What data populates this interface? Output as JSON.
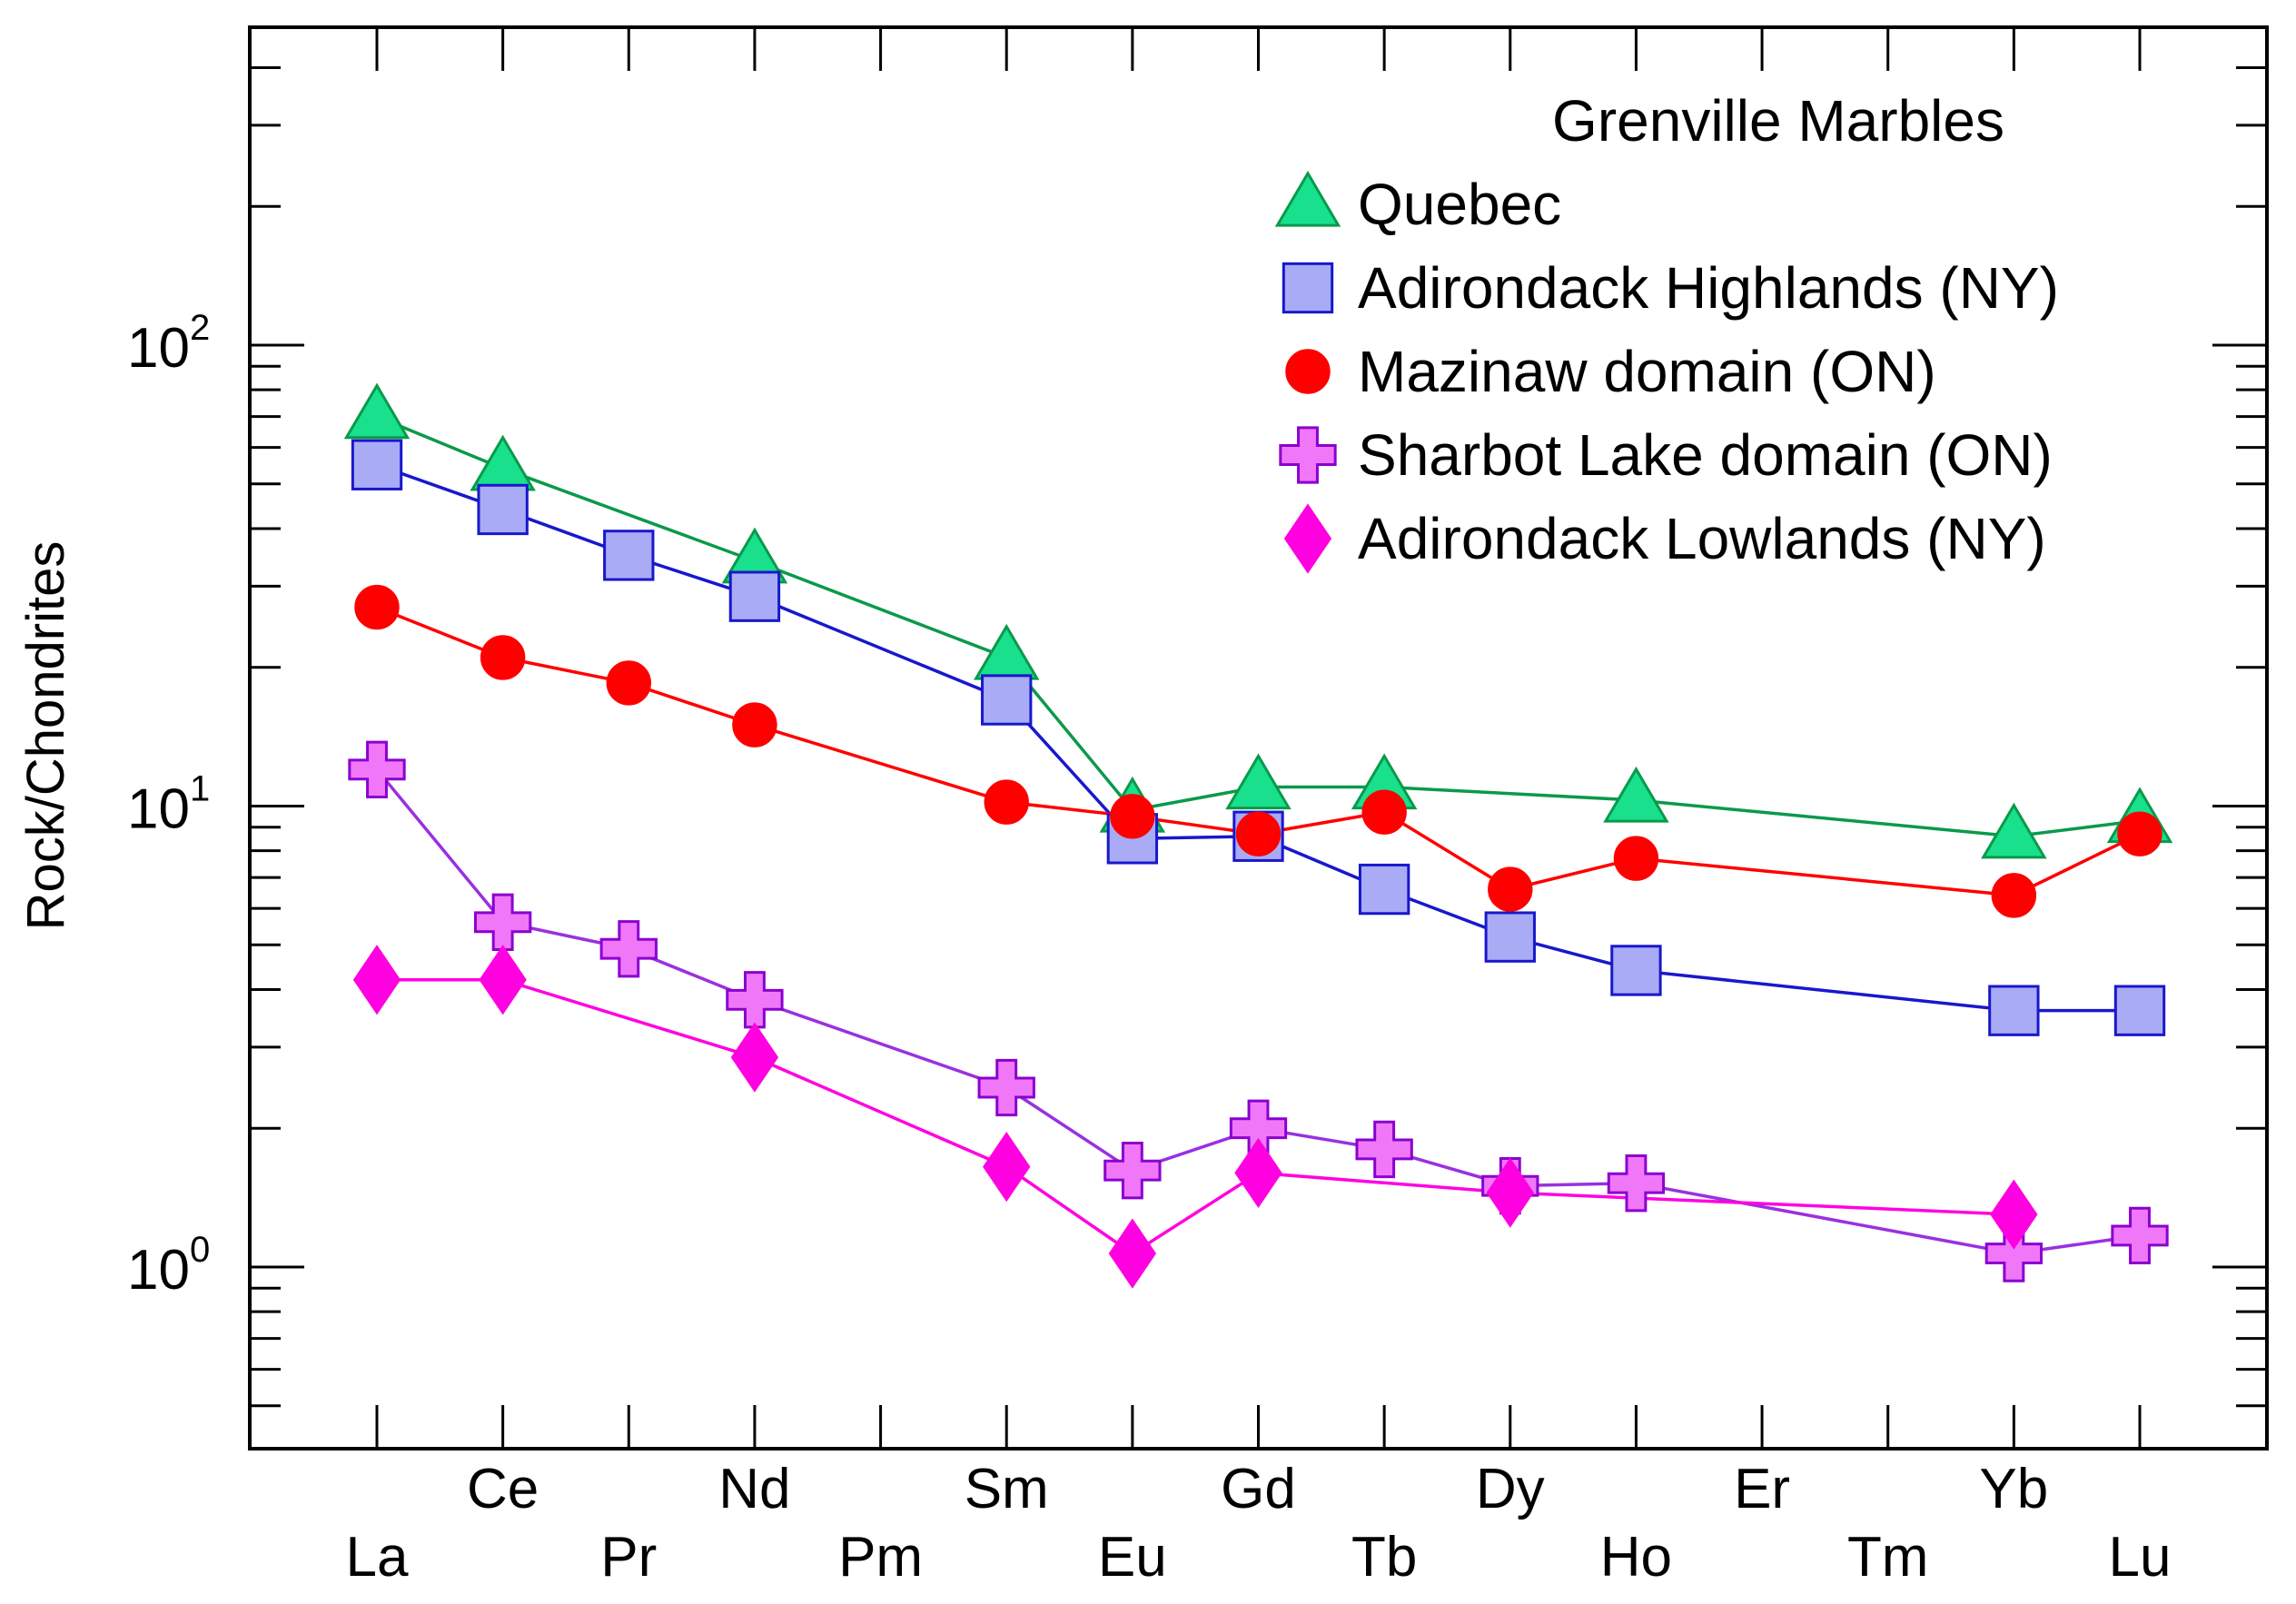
{
  "chart_data": {
    "type": "line",
    "y_scale": "log",
    "ylabel": "Rock/Chondrites",
    "ylim": [
      0.4,
      500
    ],
    "y_major_ticks": [
      {
        "value": 100,
        "base": "10",
        "exp": "2"
      },
      {
        "value": 10,
        "base": "10",
        "exp": "1"
      },
      {
        "value": 1,
        "base": "10",
        "exp": "0"
      }
    ],
    "elements": [
      "La",
      "Ce",
      "Pr",
      "Nd",
      "Pm",
      "Sm",
      "Eu",
      "Gd",
      "Tb",
      "Dy",
      "Ho",
      "Er",
      "Tm",
      "Yb",
      "Lu"
    ],
    "legend": {
      "title": "Grenville Marbles",
      "placement": "top-right"
    },
    "series": [
      {
        "name": "Quebec",
        "marker": "triangle",
        "fill": "#19E08C",
        "stroke": "#0A9A4A",
        "line": "#0A9A4A",
        "values": [
          70,
          54,
          null,
          34,
          null,
          21,
          9.8,
          11,
          11,
          null,
          10.3,
          null,
          null,
          8.6,
          9.3
        ]
      },
      {
        "name": "Adirondack Highlands (NY)",
        "marker": "square",
        "fill": "#A9ABF5",
        "stroke": "#1818CC",
        "line": "#1818CC",
        "values": [
          55,
          44,
          35,
          28.5,
          null,
          17,
          8.5,
          8.6,
          6.6,
          5.2,
          4.4,
          null,
          null,
          3.6,
          3.6
        ]
      },
      {
        "name": "Mazinaw domain (ON)",
        "marker": "circle",
        "fill": "#FF0000",
        "stroke": "#FF0000",
        "line": "#FF0000",
        "values": [
          27,
          21,
          18.5,
          15,
          null,
          10.2,
          9.5,
          8.7,
          9.7,
          6.6,
          7.7,
          null,
          null,
          6.4,
          8.7
        ]
      },
      {
        "name": "Sharbot Lake domain (ON)",
        "marker": "plus",
        "fill": "#F078F8",
        "stroke": "#8A00D0",
        "line": "#9A30E0",
        "values": [
          12,
          5.6,
          4.9,
          3.8,
          null,
          2.45,
          1.62,
          2.0,
          1.8,
          1.5,
          1.52,
          null,
          null,
          1.07,
          1.17
        ]
      },
      {
        "name": "Adirondack Lowlands (NY)",
        "marker": "diamond",
        "fill": "#FF00E0",
        "stroke": "#FF00E0",
        "line": "#FF00E0",
        "values": [
          4.2,
          4.2,
          null,
          2.85,
          null,
          1.65,
          1.07,
          1.6,
          null,
          1.45,
          null,
          null,
          null,
          1.3,
          null
        ]
      }
    ]
  }
}
